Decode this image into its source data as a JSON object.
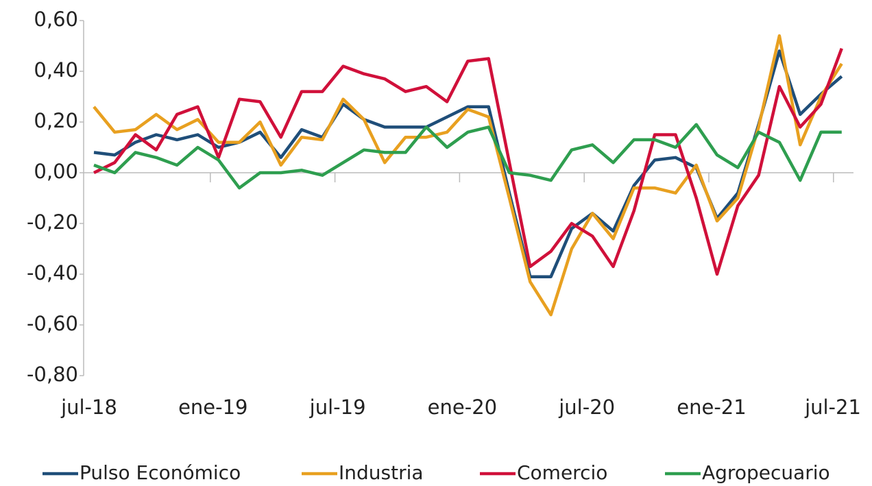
{
  "chart_data": {
    "type": "line",
    "categories": [
      "jul-18",
      null,
      null,
      null,
      null,
      null,
      "ene-19",
      null,
      null,
      null,
      null,
      null,
      "jul-19",
      null,
      null,
      null,
      null,
      null,
      "ene-20",
      null,
      null,
      null,
      null,
      null,
      "jul-20",
      null,
      null,
      null,
      null,
      null,
      "ene-21",
      null,
      null,
      null,
      null,
      null,
      "jul-21"
    ],
    "series": [
      {
        "name": "Pulso Económico",
        "color": "#1f4e79",
        "values": [
          0.08,
          0.07,
          0.12,
          0.15,
          0.13,
          0.15,
          0.1,
          0.12,
          0.16,
          0.06,
          0.17,
          0.14,
          0.27,
          0.21,
          0.18,
          0.18,
          0.18,
          0.22,
          0.26,
          0.26,
          -0.08,
          -0.41,
          -0.41,
          -0.22,
          -0.16,
          -0.23,
          -0.05,
          0.05,
          0.06,
          0.02,
          -0.18,
          -0.08,
          0.19,
          0.48,
          0.23,
          0.31,
          0.38
        ]
      },
      {
        "name": "Industria",
        "color": "#e8a020",
        "values": [
          0.26,
          0.16,
          0.17,
          0.23,
          0.17,
          0.21,
          0.12,
          0.12,
          0.2,
          0.03,
          0.14,
          0.13,
          0.29,
          0.21,
          0.04,
          0.14,
          0.14,
          0.16,
          0.25,
          0.22,
          -0.1,
          -0.43,
          -0.56,
          -0.3,
          -0.16,
          -0.26,
          -0.06,
          -0.06,
          -0.08,
          0.03,
          -0.19,
          -0.1,
          0.18,
          0.54,
          0.11,
          0.3,
          0.43
        ]
      },
      {
        "name": "Comercio",
        "color": "#d0103a",
        "values": [
          0.0,
          0.04,
          0.15,
          0.09,
          0.23,
          0.26,
          0.06,
          0.29,
          0.28,
          0.14,
          0.32,
          0.32,
          0.42,
          0.39,
          0.37,
          0.32,
          0.34,
          0.28,
          0.44,
          0.45,
          0.04,
          -0.37,
          -0.31,
          -0.2,
          -0.25,
          -0.37,
          -0.15,
          0.15,
          0.15,
          -0.1,
          -0.4,
          -0.13,
          -0.01,
          0.34,
          0.18,
          0.27,
          0.49
        ]
      },
      {
        "name": "Agropecuario",
        "color": "#2e9e4f",
        "values": [
          0.03,
          0.0,
          0.08,
          0.06,
          0.03,
          0.1,
          0.05,
          -0.06,
          0.0,
          0.0,
          0.01,
          -0.01,
          0.04,
          0.09,
          0.08,
          0.08,
          0.18,
          0.1,
          0.16,
          0.18,
          0.0,
          -0.01,
          -0.03,
          0.09,
          0.11,
          0.04,
          0.13,
          0.13,
          0.1,
          0.19,
          0.07,
          0.02,
          0.16,
          0.12,
          -0.03,
          0.16,
          0.16
        ]
      }
    ],
    "ylim": [
      -0.8,
      0.6
    ],
    "yticks": [
      {
        "value": -0.8,
        "label": "-0,80"
      },
      {
        "value": -0.6,
        "label": "-0,60"
      },
      {
        "value": -0.4,
        "label": "-0,40"
      },
      {
        "value": -0.2,
        "label": "-0,20"
      },
      {
        "value": 0,
        "label": "0,00"
      },
      {
        "value": 0.2,
        "label": "0,20"
      },
      {
        "value": 0.4,
        "label": "0,40"
      },
      {
        "value": 0.6,
        "label": "0,60"
      }
    ],
    "legend": "bottom"
  }
}
